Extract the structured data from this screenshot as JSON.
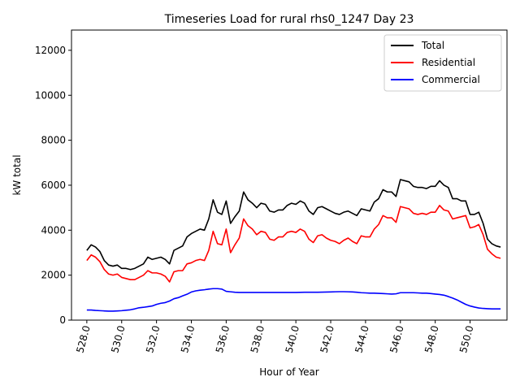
{
  "chart_data": {
    "type": "line",
    "title": "Timeseries Load for rural rhs0_1247  Day 23",
    "xlabel": "Hour of Year",
    "ylabel": "kW total",
    "xlim": [
      527.12,
      552.12
    ],
    "ylim": [
      0,
      12900
    ],
    "xticks": [
      528.0,
      530.0,
      532.0,
      534.0,
      536.0,
      538.0,
      540.0,
      542.0,
      544.0,
      546.0,
      548.0,
      550.0
    ],
    "xtick_labels": [
      "528.0",
      "530.0",
      "532.0",
      "534.0",
      "536.0",
      "538.0",
      "540.0",
      "542.0",
      "544.0",
      "546.0",
      "548.0",
      "550.0"
    ],
    "yticks": [
      0,
      2000,
      4000,
      6000,
      8000,
      10000,
      12000
    ],
    "ytick_labels": [
      "0",
      "2000",
      "4000",
      "6000",
      "8000",
      "10000",
      "12000"
    ],
    "grid": false,
    "legend_position": "top-right",
    "x": [
      528.0,
      528.25,
      528.5,
      528.75,
      529.0,
      529.25,
      529.5,
      529.75,
      530.0,
      530.25,
      530.5,
      530.75,
      531.0,
      531.25,
      531.5,
      531.75,
      532.0,
      532.25,
      532.5,
      532.75,
      533.0,
      533.25,
      533.5,
      533.75,
      534.0,
      534.25,
      534.5,
      534.75,
      535.0,
      535.25,
      535.5,
      535.75,
      536.0,
      536.25,
      536.5,
      536.75,
      537.0,
      537.25,
      537.5,
      537.75,
      538.0,
      538.25,
      538.5,
      538.75,
      539.0,
      539.25,
      539.5,
      539.75,
      540.0,
      540.25,
      540.5,
      540.75,
      541.0,
      541.25,
      541.5,
      541.75,
      542.0,
      542.25,
      542.5,
      542.75,
      543.0,
      543.25,
      543.5,
      543.75,
      544.0,
      544.25,
      544.5,
      544.75,
      545.0,
      545.25,
      545.5,
      545.75,
      546.0,
      546.25,
      546.5,
      546.75,
      547.0,
      547.25,
      547.5,
      547.75,
      548.0,
      548.25,
      548.5,
      548.75,
      549.0,
      549.25,
      549.5,
      549.75,
      550.0,
      550.25,
      550.5,
      550.75,
      551.0,
      551.25,
      551.5,
      551.75
    ],
    "series": [
      {
        "name": "Total",
        "color": "#000000",
        "values": [
          3100,
          3350,
          3250,
          3050,
          2650,
          2450,
          2400,
          2450,
          2300,
          2300,
          2250,
          2300,
          2400,
          2500,
          2800,
          2700,
          2750,
          2800,
          2700,
          2500,
          3100,
          3200,
          3300,
          3700,
          3850,
          3950,
          4050,
          4000,
          4500,
          5350,
          4800,
          4700,
          5300,
          4300,
          4600,
          4850,
          5700,
          5350,
          5200,
          5000,
          5200,
          5150,
          4850,
          4800,
          4900,
          4900,
          5100,
          5200,
          5150,
          5300,
          5200,
          4850,
          4700,
          5000,
          5050,
          4950,
          4850,
          4750,
          4700,
          4800,
          4850,
          4750,
          4650,
          4950,
          4900,
          4850,
          5250,
          5400,
          5800,
          5700,
          5700,
          5500,
          6250,
          6200,
          6150,
          5950,
          5900,
          5900,
          5850,
          5950,
          5950,
          6200,
          6000,
          5900,
          5400,
          5400,
          5300,
          5300,
          4700,
          4700,
          4800,
          4300,
          3600,
          3400,
          3300,
          3250
        ]
      },
      {
        "name": "Residential",
        "color": "#ff0000",
        "values": [
          2650,
          2900,
          2800,
          2600,
          2250,
          2050,
          2000,
          2050,
          1900,
          1850,
          1800,
          1800,
          1900,
          2000,
          2200,
          2100,
          2100,
          2050,
          1950,
          1700,
          2150,
          2200,
          2200,
          2500,
          2550,
          2650,
          2700,
          2650,
          3100,
          3950,
          3400,
          3350,
          4050,
          3000,
          3350,
          3650,
          4500,
          4200,
          4050,
          3800,
          3950,
          3900,
          3600,
          3550,
          3700,
          3700,
          3900,
          3950,
          3900,
          4050,
          3950,
          3600,
          3450,
          3750,
          3800,
          3650,
          3550,
          3500,
          3400,
          3550,
          3650,
          3500,
          3400,
          3750,
          3700,
          3700,
          4050,
          4250,
          4650,
          4550,
          4550,
          4350,
          5050,
          5000,
          4950,
          4750,
          4700,
          4750,
          4700,
          4800,
          4800,
          5100,
          4900,
          4850,
          4500,
          4550,
          4600,
          4650,
          4100,
          4150,
          4250,
          3800,
          3150,
          2950,
          2800,
          2750
        ]
      },
      {
        "name": "Commercial",
        "color": "#0000ff",
        "values": [
          450,
          450,
          430,
          420,
          410,
          400,
          400,
          410,
          420,
          440,
          460,
          500,
          550,
          570,
          600,
          630,
          700,
          750,
          780,
          850,
          950,
          1000,
          1080,
          1150,
          1250,
          1300,
          1330,
          1350,
          1380,
          1400,
          1400,
          1380,
          1280,
          1260,
          1240,
          1230,
          1230,
          1230,
          1230,
          1230,
          1230,
          1230,
          1230,
          1230,
          1230,
          1230,
          1230,
          1230,
          1230,
          1235,
          1240,
          1240,
          1240,
          1240,
          1245,
          1250,
          1255,
          1260,
          1265,
          1265,
          1260,
          1255,
          1240,
          1220,
          1210,
          1200,
          1200,
          1190,
          1180,
          1170,
          1160,
          1170,
          1220,
          1220,
          1220,
          1220,
          1210,
          1200,
          1200,
          1180,
          1160,
          1140,
          1110,
          1050,
          980,
          900,
          800,
          700,
          630,
          580,
          540,
          520,
          510,
          500,
          500,
          500
        ]
      }
    ]
  }
}
